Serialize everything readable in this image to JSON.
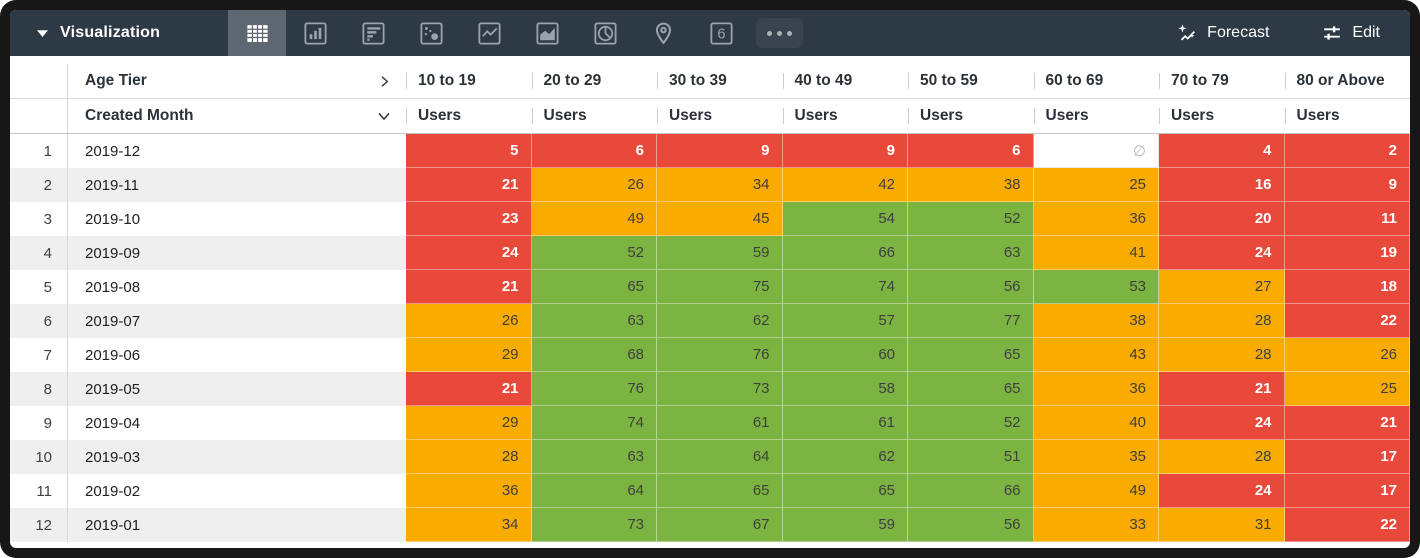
{
  "topbar": {
    "title": "Visualization",
    "forecast_label": "Forecast",
    "edit_label": "Edit",
    "single_value_label": "6",
    "viz_types": [
      {
        "id": "table",
        "selected": true
      },
      {
        "id": "bar-chart",
        "selected": false
      },
      {
        "id": "horizontal-bar-chart",
        "selected": false
      },
      {
        "id": "scatter-plot",
        "selected": false
      },
      {
        "id": "line-chart",
        "selected": false
      },
      {
        "id": "area-chart",
        "selected": false
      },
      {
        "id": "pie-chart",
        "selected": false
      },
      {
        "id": "map",
        "selected": false
      },
      {
        "id": "single-value",
        "selected": false
      },
      {
        "id": "more-options",
        "selected": false
      }
    ]
  },
  "table": {
    "pivot_field_label": "Age Tier",
    "row_field_label": "Created Month",
    "measure_label": "Users",
    "columns": [
      "10 to 19",
      "20 to 29",
      "30 to 39",
      "40 to 49",
      "50 to 59",
      "60 to 69",
      "70 to 79",
      "80 or Above"
    ],
    "null_symbol": "∅",
    "color_rules": {
      "red_below": 25,
      "green_from": 50
    },
    "rows": [
      {
        "num": 1,
        "month": "2019-12",
        "values": [
          5,
          6,
          9,
          9,
          6,
          null,
          4,
          2
        ]
      },
      {
        "num": 2,
        "month": "2019-11",
        "values": [
          21,
          26,
          34,
          42,
          38,
          25,
          16,
          9
        ]
      },
      {
        "num": 3,
        "month": "2019-10",
        "values": [
          23,
          49,
          45,
          54,
          52,
          36,
          20,
          11
        ]
      },
      {
        "num": 4,
        "month": "2019-09",
        "values": [
          24,
          52,
          59,
          66,
          63,
          41,
          24,
          19
        ]
      },
      {
        "num": 5,
        "month": "2019-08",
        "values": [
          21,
          65,
          75,
          74,
          56,
          53,
          27,
          18
        ]
      },
      {
        "num": 6,
        "month": "2019-07",
        "values": [
          26,
          63,
          62,
          57,
          77,
          38,
          28,
          22
        ]
      },
      {
        "num": 7,
        "month": "2019-06",
        "values": [
          29,
          68,
          76,
          60,
          65,
          43,
          28,
          26
        ]
      },
      {
        "num": 8,
        "month": "2019-05",
        "values": [
          21,
          76,
          73,
          58,
          65,
          36,
          21,
          25
        ]
      },
      {
        "num": 9,
        "month": "2019-04",
        "values": [
          29,
          74,
          61,
          61,
          52,
          40,
          24,
          21
        ]
      },
      {
        "num": 10,
        "month": "2019-03",
        "values": [
          28,
          63,
          64,
          62,
          51,
          35,
          28,
          17
        ]
      },
      {
        "num": 11,
        "month": "2019-02",
        "values": [
          36,
          64,
          65,
          65,
          66,
          49,
          24,
          17
        ]
      },
      {
        "num": 12,
        "month": "2019-01",
        "values": [
          34,
          73,
          67,
          59,
          56,
          33,
          31,
          22
        ]
      }
    ]
  },
  "colors": {
    "topbar_bg": "#2d3a46",
    "selected_viz_bg": "#5d6771",
    "cell_red": "#e8493b",
    "cell_orange": "#f9ab00",
    "cell_green": "#7cb442",
    "cell_dark_text": "#403f3f",
    "null_text": "#b9b9b9"
  }
}
